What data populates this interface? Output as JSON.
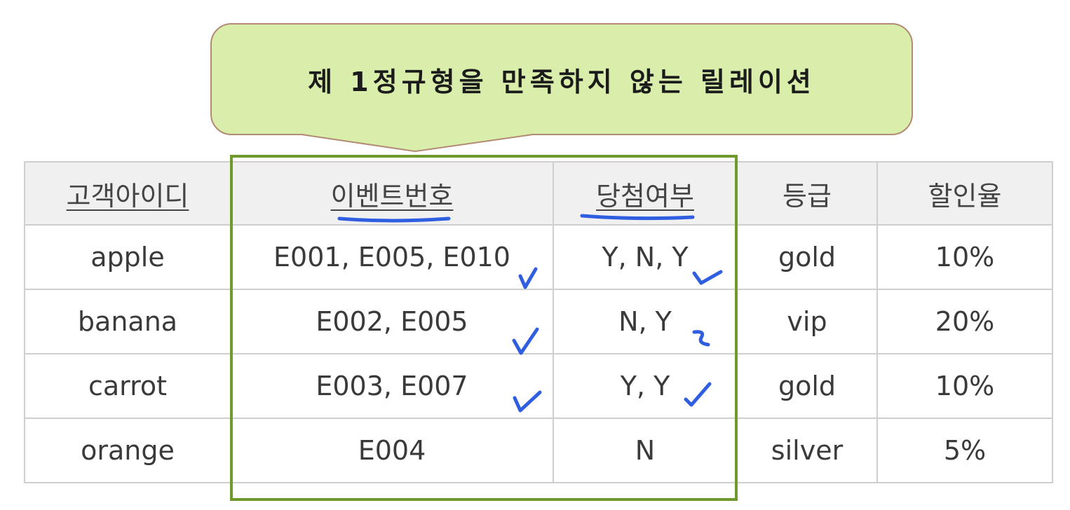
{
  "callout": {
    "text": "제 1정규형을 만족하지 않는 릴레이션"
  },
  "table": {
    "headers": [
      "고객아이디",
      "이벤트번호",
      "당첨여부",
      "등급",
      "할인율"
    ],
    "rows": [
      [
        "apple",
        "E001, E005, E010",
        "Y, N, Y",
        "gold",
        "10%"
      ],
      [
        "banana",
        "E002, E005",
        "N, Y",
        "vip",
        "20%"
      ],
      [
        "carrot",
        "E003, E007",
        "Y, Y",
        "gold",
        "10%"
      ],
      [
        "orange",
        "E004",
        "N",
        "silver",
        "5%"
      ]
    ]
  },
  "colors": {
    "callout_fill": "#d8eeaa",
    "callout_border": "#b38a73",
    "highlight_border": "#6e9a2c",
    "pen_annotation": "#2f5ee0",
    "header_bg": "#f0f0f0"
  }
}
